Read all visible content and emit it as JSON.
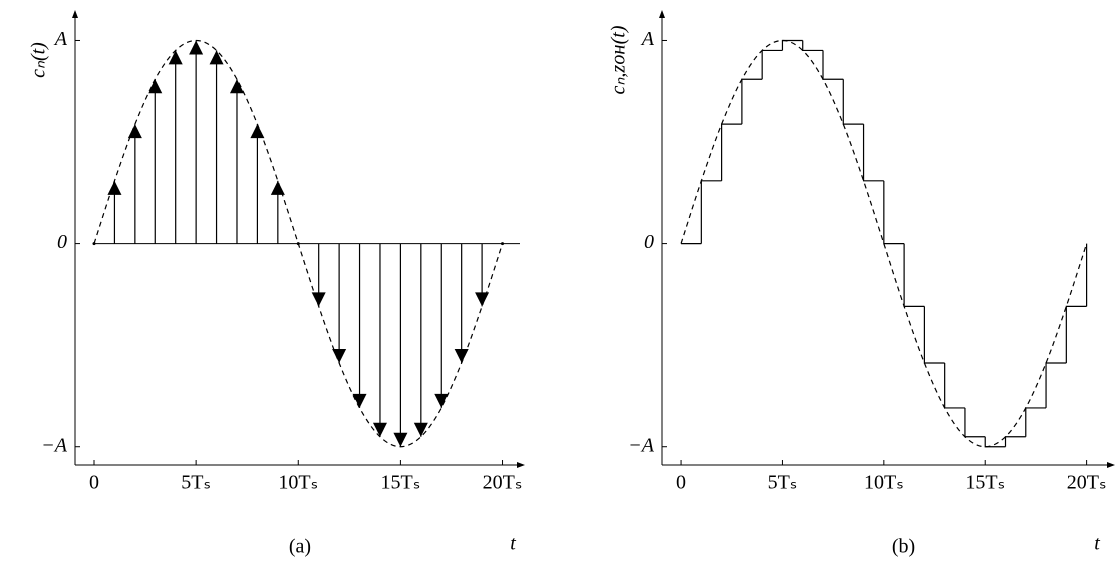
{
  "chart_data": [
    {
      "type": "stem",
      "caption": "(a)",
      "ylabel": "cₙ(t)",
      "xlabel": "t",
      "x": [
        0,
        1,
        2,
        3,
        4,
        5,
        6,
        7,
        8,
        9,
        10,
        11,
        12,
        13,
        14,
        15,
        16,
        17,
        18,
        19,
        20
      ],
      "values": [
        0,
        0.309,
        0.588,
        0.809,
        0.951,
        1,
        0.951,
        0.809,
        0.588,
        0.309,
        0,
        -0.309,
        -0.588,
        -0.809,
        -0.951,
        -1,
        -0.951,
        -0.809,
        -0.588,
        -0.309,
        0
      ],
      "xlim": [
        -0.93,
        21.1
      ],
      "ylim": [
        -1.09,
        1.15
      ],
      "xticks": [
        0,
        {
          "value": 5,
          "label": "5Tₛ"
        },
        {
          "value": 10,
          "label": "10Tₛ"
        },
        {
          "value": 15,
          "label": "15Tₛ"
        },
        {
          "value": 20,
          "label": "20Tₛ"
        }
      ],
      "yticks": [
        {
          "value": -1,
          "label": "−A"
        },
        0,
        {
          "value": 1,
          "label": "A"
        }
      ],
      "color": "#000000"
    },
    {
      "type": "step",
      "caption": "(b)",
      "ylabel": "cₙ,ᴢᴏʜ(t)",
      "xlabel": "t",
      "x": [
        0,
        1,
        2,
        3,
        4,
        5,
        6,
        7,
        8,
        9,
        10,
        11,
        12,
        13,
        14,
        15,
        16,
        17,
        18,
        19,
        20
      ],
      "values": [
        0,
        0.309,
        0.588,
        0.809,
        0.951,
        1,
        0.951,
        0.809,
        0.588,
        0.309,
        0,
        -0.309,
        -0.588,
        -0.809,
        -0.951,
        -1,
        -0.951,
        -0.809,
        -0.588,
        -0.309,
        0
      ],
      "xlim": [
        -0.94,
        21.4
      ],
      "ylim": [
        -1.09,
        1.15
      ],
      "xticks": [
        0,
        {
          "value": 5,
          "label": "5Tₛ"
        },
        {
          "value": 10,
          "label": "10Tₛ"
        },
        {
          "value": 15,
          "label": "15Tₛ"
        },
        {
          "value": 20,
          "label": "20Tₛ"
        }
      ],
      "yticks": [
        {
          "value": -1,
          "label": "−A"
        },
        0,
        {
          "value": 1,
          "label": "A"
        }
      ],
      "color": "#000000"
    }
  ]
}
